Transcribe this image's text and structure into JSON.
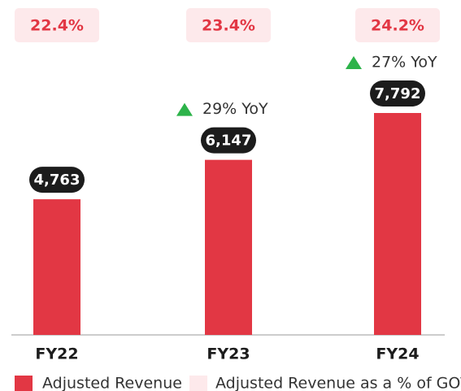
{
  "chart_data": {
    "type": "bar",
    "categories": [
      "FY22",
      "FY23",
      "FY24"
    ],
    "series": [
      {
        "name": "Adjusted Revenue",
        "color": "#e23744",
        "values": [
          4763,
          6147,
          7792
        ],
        "value_labels": [
          "4,763",
          "6,147",
          "7,792"
        ]
      },
      {
        "name": "Adjusted Revenue as a % of GOV",
        "color": "#fde9eb",
        "values": [
          22.4,
          23.4,
          24.2
        ],
        "value_labels": [
          "22.4%",
          "23.4%",
          "24.2%"
        ]
      }
    ],
    "annotations": [
      {
        "text": "29% YoY",
        "category": "FY23",
        "color": "#2db34a"
      },
      {
        "text": "27% YoY",
        "category": "FY24",
        "color": "#2db34a"
      }
    ]
  }
}
